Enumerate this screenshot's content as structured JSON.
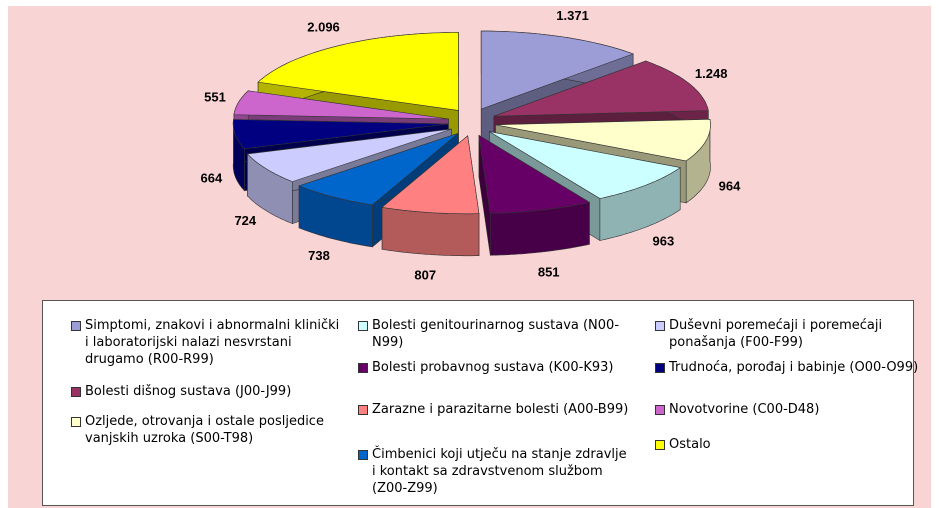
{
  "chart_data": {
    "type": "pie3d",
    "categories": [
      "Simptomi, znakovi i abnormalni klinički i laboratorijski nalazi nesvrstani drugamo (R00-R99)",
      "Bolesti dišnog sustava (J00-J99)",
      "Ozljede, otrovanja i ostale posljedice vanjskih uzroka (S00-T98)",
      "Bolesti genitourinarnog sustava (N00-N99)",
      "Bolesti probavnog sustava (K00-K93)",
      "Zarazne i parazitarne bolesti (A00-B99)",
      "Čimbenici koji utječu na stanje zdravlje i kontakt sa zdravstvenom službom (Z00-Z99)",
      "Duševni poremećaji i poremećaji ponašanja (F00-F99)",
      "Trudnoća, porođaj i babinje (O00-O99)",
      "Novotvorine (C00-D48)",
      "Ostalo"
    ],
    "values": [
      1371,
      1248,
      964,
      963,
      851,
      807,
      738,
      724,
      664,
      551,
      2096
    ],
    "value_labels": [
      "1.371",
      "1.248",
      "964",
      "963",
      "851",
      "807",
      "738",
      "724",
      "664",
      "551",
      "2.096"
    ],
    "colors": [
      "#9c9cd6",
      "#993366",
      "#ffffcc",
      "#ccffff",
      "#660066",
      "#ff8080",
      "#0066cc",
      "#ccccff",
      "#000080",
      "#cc66cc",
      "#ffff00"
    ]
  }
}
